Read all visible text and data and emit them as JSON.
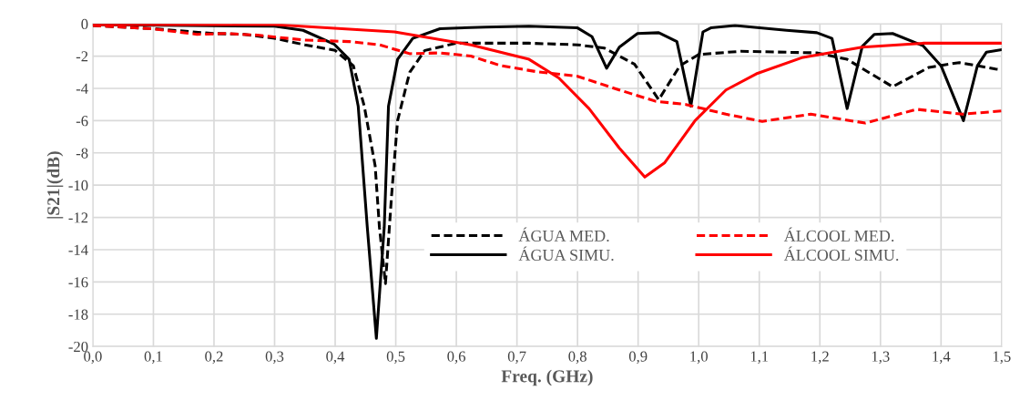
{
  "chart_data": {
    "type": "line",
    "xlabel": "Freq. (GHz)",
    "ylabel": "|S21|(dB)",
    "xlim": [
      0,
      1.5
    ],
    "xticks": [
      {
        "value": 0,
        "label": "0,0"
      },
      {
        "value": 0.1,
        "label": "0,1"
      },
      {
        "value": 0.2,
        "label": "0,2"
      },
      {
        "value": 0.3,
        "label": "0,3"
      },
      {
        "value": 0.4,
        "label": "0,4"
      },
      {
        "value": 0.5,
        "label": "0,5"
      },
      {
        "value": 0.6,
        "label": "0,6"
      },
      {
        "value": 0.7,
        "label": "0,7"
      },
      {
        "value": 0.8,
        "label": "0,8"
      },
      {
        "value": 0.9,
        "label": "0,9"
      },
      {
        "value": 1.0,
        "label": "1,0"
      },
      {
        "value": 1.1,
        "label": "1,1"
      },
      {
        "value": 1.2,
        "label": "1,2"
      },
      {
        "value": 1.3,
        "label": "1,3"
      },
      {
        "value": 1.4,
        "label": "1,4"
      },
      {
        "value": 1.5,
        "label": "1,5"
      }
    ],
    "ylim": [
      -20,
      0
    ],
    "yticks": [
      -20,
      -18,
      -16,
      -14,
      -12,
      -10,
      -8,
      -6,
      -4,
      -2,
      0
    ],
    "grid": true,
    "legend": "bottom right",
    "marker": "none",
    "series": [
      {
        "name": "ÁGUA MED.",
        "color": "#000000",
        "line_style": "dashed",
        "x": [
          0,
          0.1,
          0.2,
          0.25,
          0.3,
          0.35,
          0.4,
          0.43,
          0.448,
          0.466,
          0.473,
          0.483,
          0.493,
          0.503,
          0.523,
          0.548,
          0.6,
          0.72,
          0.8,
          0.844,
          0.894,
          0.934,
          0.969,
          1.0,
          1.07,
          1.195,
          1.245,
          1.32,
          1.38,
          1.43,
          1.49,
          1.5
        ],
        "values": [
          -0.1,
          -0.3,
          -0.6,
          -0.65,
          -0.9,
          -1.3,
          -1.65,
          -2.6,
          -5.1,
          -8.8,
          -12.6,
          -16.1,
          -10.7,
          -6.0,
          -3.0,
          -1.65,
          -1.2,
          -1.2,
          -1.3,
          -1.5,
          -2.5,
          -4.7,
          -2.6,
          -1.9,
          -1.7,
          -1.8,
          -2.2,
          -3.9,
          -2.7,
          -2.4,
          -2.8,
          -2.85
        ]
      },
      {
        "name": "ÁGUA SIMU.",
        "color": "#000000",
        "line_style": "solid",
        "x": [
          0,
          0.3,
          0.347,
          0.398,
          0.423,
          0.438,
          0.453,
          0.468,
          0.481,
          0.488,
          0.503,
          0.528,
          0.573,
          0.648,
          0.72,
          0.8,
          0.824,
          0.848,
          0.869,
          0.899,
          0.934,
          0.964,
          0.987,
          1.007,
          1.02,
          1.06,
          1.145,
          1.195,
          1.22,
          1.245,
          1.27,
          1.29,
          1.32,
          1.37,
          1.4,
          1.437,
          1.46,
          1.475,
          1.5
        ],
        "values": [
          -0.05,
          -0.15,
          -0.4,
          -1.25,
          -2.2,
          -5.1,
          -12.6,
          -19.5,
          -12.6,
          -5.1,
          -2.2,
          -0.9,
          -0.3,
          -0.2,
          -0.15,
          -0.25,
          -0.8,
          -2.75,
          -1.45,
          -0.6,
          -0.55,
          -1.1,
          -5.1,
          -0.5,
          -0.25,
          -0.1,
          -0.4,
          -0.55,
          -0.9,
          -5.25,
          -1.4,
          -0.65,
          -0.6,
          -1.35,
          -2.6,
          -6.0,
          -2.6,
          -1.75,
          -1.6
        ]
      },
      {
        "name": "ÁLCOOL MED.",
        "color": "#ff0000",
        "line_style": "dashed",
        "x": [
          0,
          0.097,
          0.172,
          0.223,
          0.272,
          0.347,
          0.423,
          0.473,
          0.523,
          0.573,
          0.624,
          0.674,
          0.73,
          0.8,
          0.869,
          0.929,
          0.979,
          1.045,
          1.105,
          1.185,
          1.275,
          1.36,
          1.435,
          1.5
        ],
        "values": [
          -0.1,
          -0.3,
          -0.65,
          -0.6,
          -0.7,
          -1.0,
          -1.1,
          -1.3,
          -1.85,
          -1.8,
          -2.0,
          -2.6,
          -2.95,
          -3.25,
          -4.1,
          -4.8,
          -5.0,
          -5.6,
          -6.05,
          -5.6,
          -6.15,
          -5.3,
          -5.6,
          -5.4
        ]
      },
      {
        "name": "ÁLCOOL SIMU.",
        "color": "#ff0000",
        "line_style": "solid",
        "x": [
          0,
          0.3,
          0.498,
          0.624,
          0.72,
          0.769,
          0.819,
          0.869,
          0.911,
          0.944,
          0.994,
          1.045,
          1.095,
          1.17,
          1.27,
          1.37,
          1.5
        ],
        "values": [
          -0.05,
          -0.05,
          -0.5,
          -1.3,
          -2.2,
          -3.35,
          -5.25,
          -7.7,
          -9.5,
          -8.6,
          -6.0,
          -4.1,
          -3.1,
          -2.1,
          -1.45,
          -1.2,
          -1.2
        ]
      }
    ]
  }
}
